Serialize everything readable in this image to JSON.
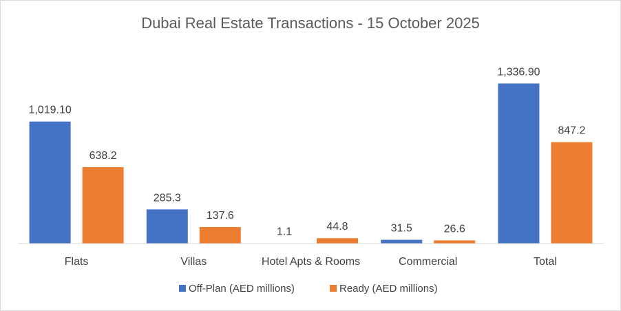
{
  "chart_data": {
    "type": "bar",
    "title": "Dubai Real Estate Transactions - 15 October 2025",
    "xlabel": "",
    "ylabel": "",
    "ylim": [
      0,
      1500
    ],
    "categories": [
      "Flats",
      "Villas",
      "Hotel Apts & Rooms",
      "Commercial",
      "Total"
    ],
    "series": [
      {
        "name": "Off-Plan (AED millions)",
        "color": "#4472c4",
        "values": [
          1019.1,
          285.3,
          1.1,
          31.5,
          1336.9
        ],
        "labels": [
          "1,019.10",
          "285.3",
          "1.1",
          "31.5",
          "1,336.90"
        ]
      },
      {
        "name": "Ready (AED millions)",
        "color": "#ed7d31",
        "values": [
          638.2,
          137.6,
          44.8,
          26.6,
          847.2
        ],
        "labels": [
          "638.2",
          "137.6",
          "44.8",
          "26.6",
          "847.2"
        ]
      }
    ],
    "legend_position": "bottom",
    "grid": false
  }
}
